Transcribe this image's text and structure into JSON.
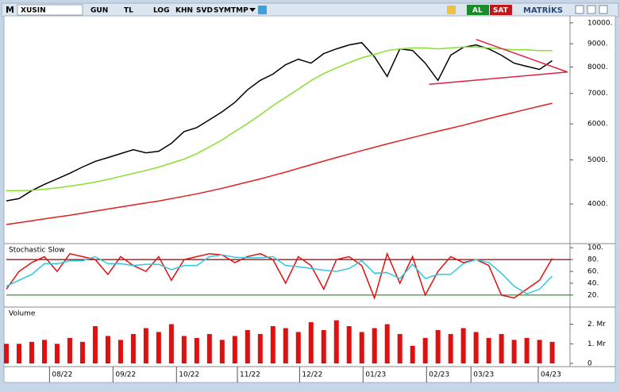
{
  "toolbar": {
    "logo": "M",
    "symbol": "XUSIN",
    "buttons": [
      "GUN",
      "TL",
      "LOG",
      "KHN",
      "SVD",
      "SYM",
      "TMP"
    ],
    "buy": "AL",
    "sell": "SAT",
    "brand": "MATRİKS"
  },
  "chart_data": [
    {
      "type": "line",
      "log_scale": true,
      "xlim": [
        0,
        44.4
      ],
      "ylim": [
        3300,
        10280
      ],
      "yticks": [
        {
          "value": 4000,
          "label": "4000."
        },
        {
          "value": 5000,
          "label": "5000."
        },
        {
          "value": 6000,
          "label": "6000."
        },
        {
          "value": 7000,
          "label": "7000."
        },
        {
          "value": 8000,
          "label": "8000."
        },
        {
          "value": 9000,
          "label": "9000."
        },
        {
          "value": 10000,
          "label": "10000."
        }
      ],
      "series": [
        {
          "color": "#000000",
          "values": [
            4064,
            4111,
            4280,
            4419,
            4543,
            4675,
            4822,
            4962,
            5058,
            5162,
            5267,
            5182,
            5224,
            5436,
            5770,
            5887,
            6127,
            6377,
            6688,
            7128,
            7476,
            7718,
            8094,
            8322,
            8159,
            8560,
            8768,
            8946,
            9051,
            8425,
            7627,
            8768,
            8697,
            8159,
            7476,
            8493,
            8839,
            8946,
            8768,
            8493,
            8159,
            8029,
            7902,
            8260
          ]
        },
        {
          "color": "#88e030",
          "values": [
            4280,
            4280,
            4290,
            4310,
            4340,
            4380,
            4420,
            4470,
            4530,
            4600,
            4670,
            4740,
            4820,
            4920,
            5020,
            5160,
            5340,
            5530,
            5770,
            6010,
            6280,
            6580,
            6860,
            7150,
            7470,
            7740,
            7960,
            8180,
            8380,
            8530,
            8690,
            8770,
            8810,
            8810,
            8770,
            8810,
            8850,
            8850,
            8810,
            8770,
            8730,
            8730,
            8690,
            8690
          ]
        },
        {
          "color": "#e02020",
          "values": [
            3606,
            3640,
            3675,
            3710,
            3745,
            3780,
            3820,
            3860,
            3900,
            3940,
            3980,
            4020,
            4060,
            4110,
            4160,
            4210,
            4270,
            4330,
            4400,
            4470,
            4540,
            4620,
            4700,
            4790,
            4880,
            4970,
            5060,
            5150,
            5240,
            5330,
            5420,
            5510,
            5600,
            5690,
            5780,
            5870,
            5960,
            6060,
            6160,
            6260,
            6360,
            6460,
            6560,
            6660
          ]
        }
      ],
      "trendlines": [
        {
          "color": "#e02040",
          "x": [
            37,
            44.2
          ],
          "values": [
            9200,
            7800
          ]
        },
        {
          "color": "#e02040",
          "x": [
            33.3,
            44.2
          ],
          "values": [
            7330,
            7800
          ]
        }
      ]
    },
    {
      "type": "line",
      "title": "Stochastic Slow",
      "xlim": [
        0,
        44.4
      ],
      "ylim": [
        5,
        103
      ],
      "yticks": [
        {
          "value": 20,
          "label": "20."
        },
        {
          "value": 40,
          "label": "40."
        },
        {
          "value": 60,
          "label": "60."
        },
        {
          "value": 80,
          "label": "80."
        },
        {
          "value": 100,
          "label": "100."
        }
      ],
      "hlines": [
        {
          "value": 80,
          "color": "#8b0000"
        },
        {
          "value": 20,
          "color": "#228b22"
        }
      ],
      "series": [
        {
          "color": "#e01010",
          "values": [
            30,
            60,
            75,
            85,
            60,
            90,
            85,
            80,
            55,
            85,
            70,
            60,
            85,
            45,
            80,
            85,
            90,
            88,
            75,
            85,
            90,
            80,
            40,
            85,
            70,
            30,
            80,
            85,
            70,
            15,
            90,
            40,
            85,
            20,
            60,
            85,
            75,
            80,
            70,
            20,
            15,
            30,
            45,
            82
          ]
        },
        {
          "color": "#30c8e0",
          "values": [
            35,
            45,
            55,
            73,
            73,
            78,
            78,
            85,
            73,
            73,
            70,
            72,
            72,
            63,
            70,
            70,
            85,
            88,
            84,
            83,
            83,
            85,
            70,
            68,
            65,
            62,
            60,
            65,
            78,
            57,
            58,
            48,
            72,
            48,
            55,
            55,
            73,
            80,
            75,
            57,
            35,
            22,
            30,
            52
          ]
        }
      ]
    },
    {
      "type": "bar",
      "title": "Volume",
      "xlim": [
        0,
        44.4
      ],
      "ylim": [
        0,
        2750000
      ],
      "color": "#e01010",
      "yticks": [
        0,
        {
          "value": 1000000,
          "label": "1. Mr"
        },
        {
          "value": 2000000,
          "label": "2. Mr"
        }
      ],
      "xticks": [
        {
          "value": 3.4,
          "label": "08/22"
        },
        {
          "value": 8.4,
          "label": "09/22"
        },
        {
          "value": 13.4,
          "label": "10/22"
        },
        {
          "value": 18.2,
          "label": "11/22"
        },
        {
          "value": 23.1,
          "label": "12/22"
        },
        {
          "value": 28.1,
          "label": "01/23"
        },
        {
          "value": 33.1,
          "label": "02/23"
        },
        {
          "value": 36.6,
          "label": "03/23"
        },
        {
          "value": 41.9,
          "label": "04/23"
        }
      ],
      "values": [
        1000000,
        1000000,
        1100000,
        1200000,
        1000000,
        1300000,
        1100000,
        1900000,
        1400000,
        1200000,
        1500000,
        1800000,
        1600000,
        2000000,
        1400000,
        1300000,
        1500000,
        1200000,
        1400000,
        1700000,
        1500000,
        1900000,
        1800000,
        1600000,
        2100000,
        1700000,
        2200000,
        1900000,
        1600000,
        1800000,
        2000000,
        1500000,
        900000,
        1300000,
        1700000,
        1500000,
        1800000,
        1600000,
        1300000,
        1500000,
        1200000,
        1300000,
        1200000,
        1100000
      ]
    }
  ]
}
